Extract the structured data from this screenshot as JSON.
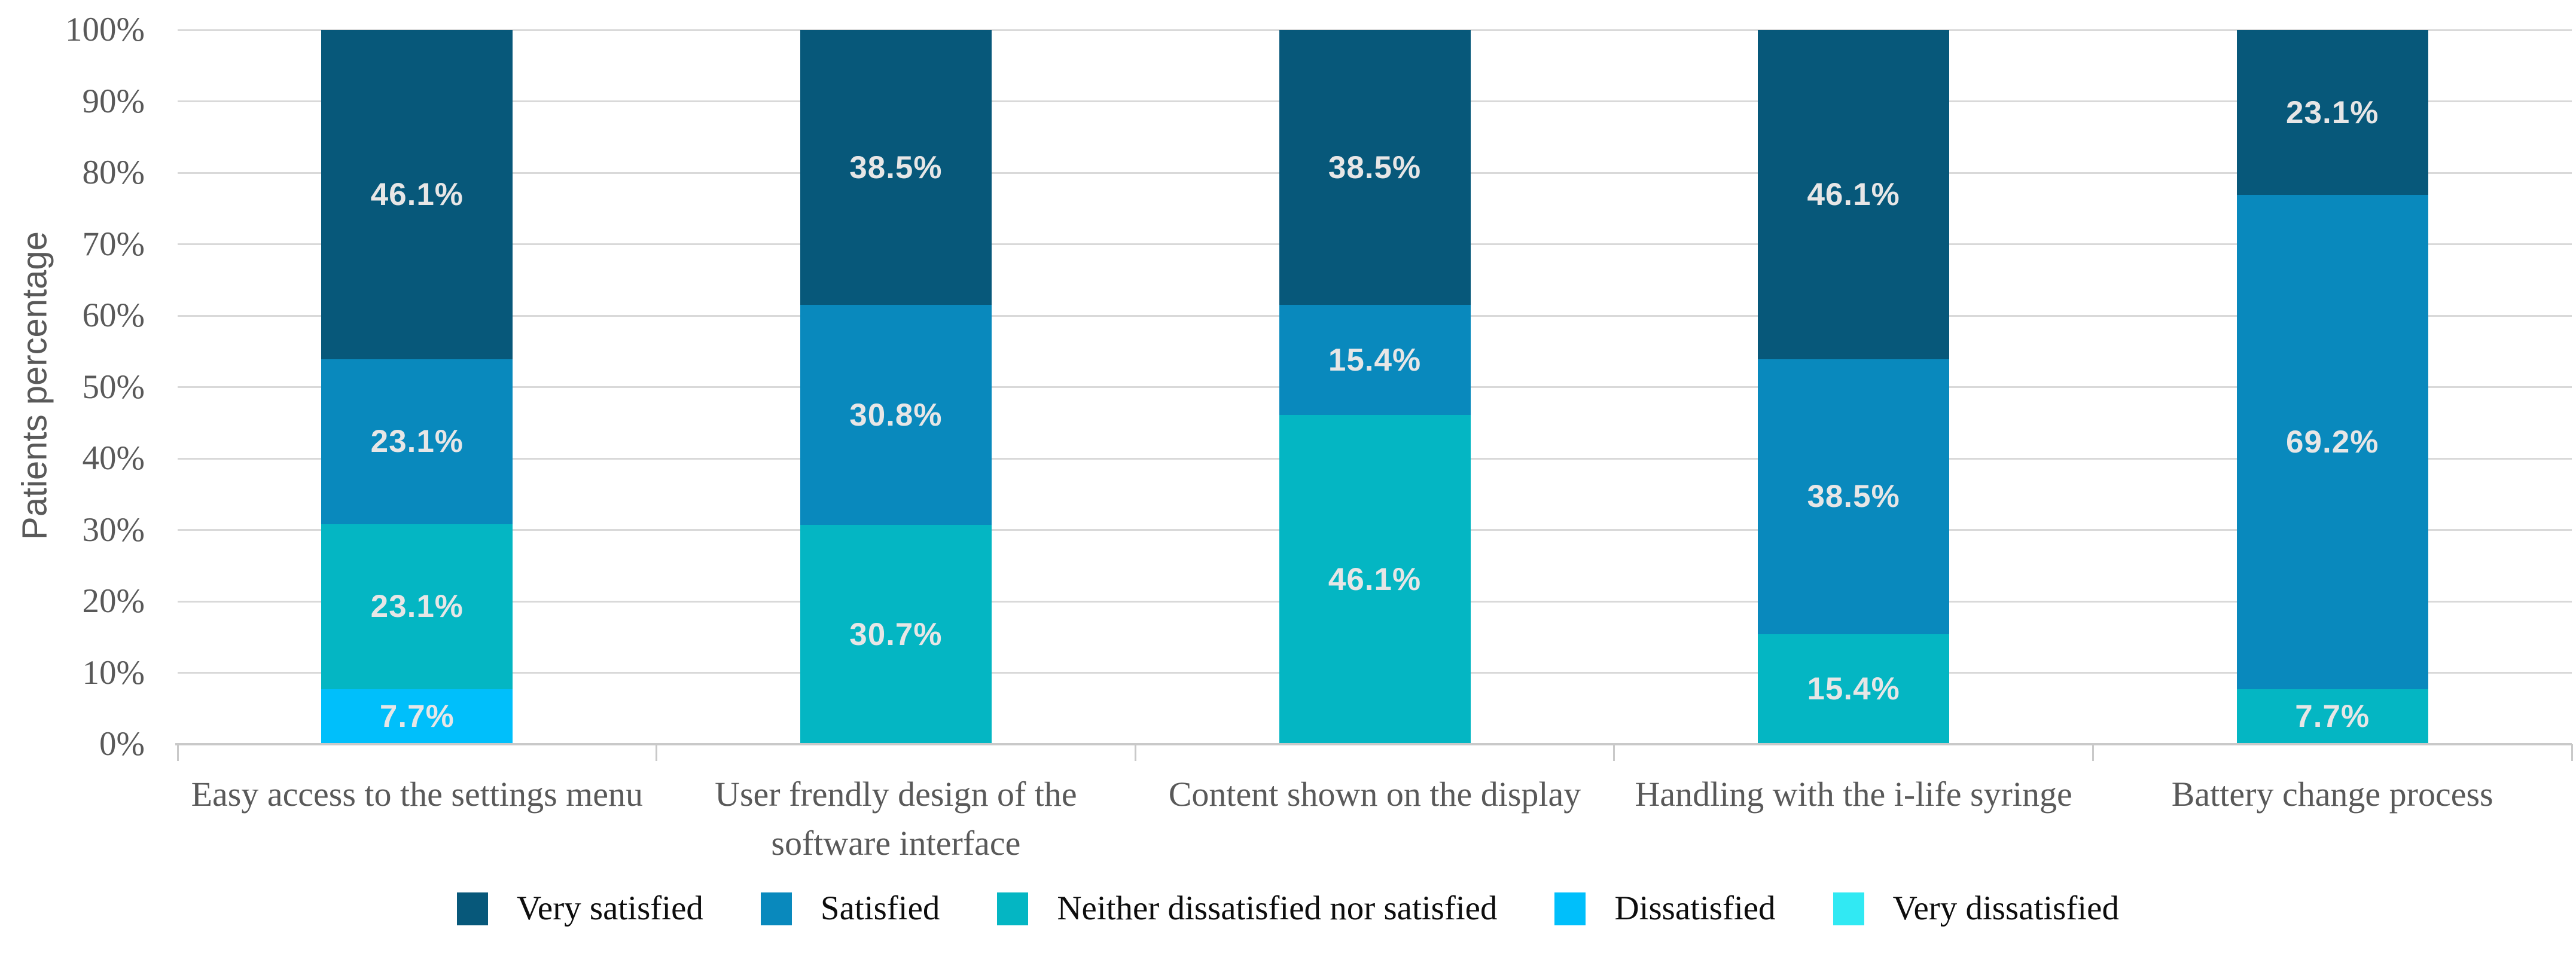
{
  "chart_data": {
    "type": "bar",
    "stacked": true,
    "orientation": "vertical",
    "title": "",
    "xlabel": "",
    "ylabel": "Patients percentage",
    "ylim": [
      0,
      100
    ],
    "ytick_step": 10,
    "yticks": [
      "0%",
      "10%",
      "20%",
      "30%",
      "40%",
      "50%",
      "60%",
      "70%",
      "80%",
      "90%",
      "100%"
    ],
    "grid": "horizontal",
    "legend_position": "bottom",
    "categories": [
      "Easy access to the settings menu",
      "User frendly  design of the software interface",
      "Content shown on the display",
      "Handling with the i-life syringe",
      "Battery change process"
    ],
    "series": [
      {
        "name": "Very dissatisfied",
        "color": "#31E9F3",
        "values": [
          0,
          0,
          0,
          0,
          0
        ]
      },
      {
        "name": "Dissatisfied",
        "color": "#00BFFB",
        "values": [
          7.7,
          0,
          0,
          0,
          0
        ]
      },
      {
        "name": "Neither dissatisfied nor satisfied",
        "color": "#04B6C3",
        "values": [
          23.1,
          30.7,
          46.1,
          15.4,
          7.7
        ]
      },
      {
        "name": "Satisfied",
        "color": "#0989BD",
        "values": [
          23.1,
          30.8,
          15.4,
          38.5,
          69.2
        ]
      },
      {
        "name": "Very satisfied",
        "color": "#07587A",
        "values": [
          46.1,
          38.5,
          38.5,
          46.1,
          23.1
        ]
      }
    ],
    "legend_order": [
      "Very satisfied",
      "Satisfied",
      "Neither dissatisfied nor satisfied",
      "Dissatisfied",
      "Very dissatisfied"
    ],
    "data_label_format": "{value}%",
    "data_label_color": "#E7E6E6",
    "colors": {
      "gridline": "#D9D9D9",
      "axis_line": "#C9C9C9",
      "tick_text": "#595959",
      "category_text": "#595959",
      "legend_text": "#0d0d0d"
    }
  }
}
